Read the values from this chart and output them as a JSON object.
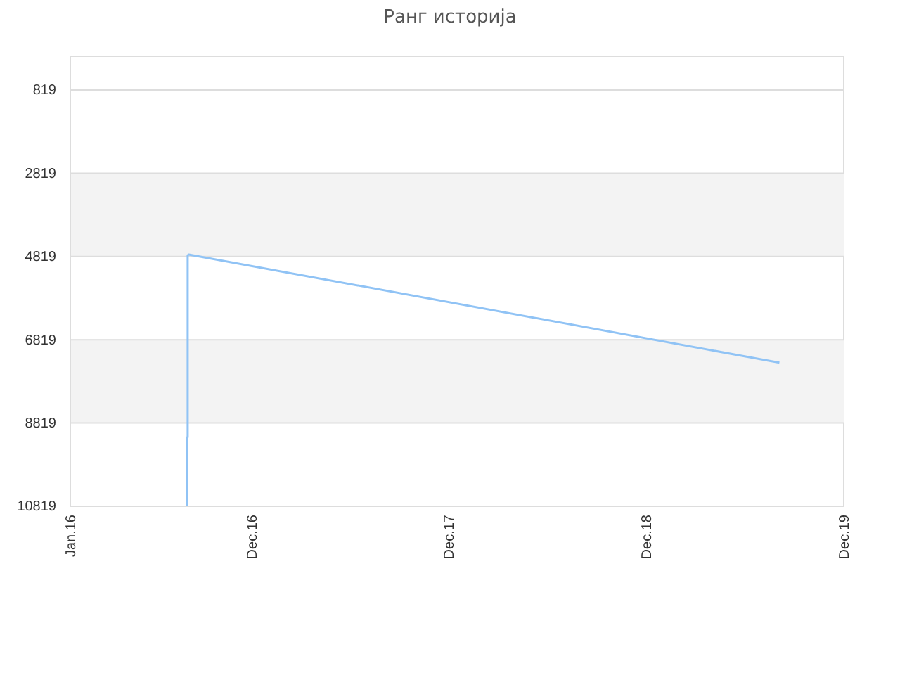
{
  "chart_data": {
    "type": "line",
    "title": "Ранг историја",
    "x": [
      "2016-08-04",
      "2016-08-04",
      "2016-08-05",
      "2016-08-05",
      "2016-08-07",
      "2019-08-04"
    ],
    "series": [
      {
        "color": "#90c3f5",
        "values": [
          10819,
          9160,
          9160,
          4790,
          4770,
          7370
        ]
      }
    ],
    "xlim": [
      "2016-01-01",
      "2019-12-01"
    ],
    "xticks": [
      {
        "value": "2016-01-01",
        "label": "Jan.16"
      },
      {
        "value": "2016-12-01",
        "label": "Dec.16"
      },
      {
        "value": "2017-12-01",
        "label": "Dec.17"
      },
      {
        "value": "2018-12-01",
        "label": "Dec.18"
      },
      {
        "value": "2019-12-01",
        "label": "Dec.19"
      }
    ],
    "ylim": [
      10819,
      8
    ],
    "yticks": [
      819,
      2819,
      4819,
      6819,
      8819,
      10819
    ],
    "grid": "y",
    "marker": "none",
    "line_style": "solid"
  }
}
